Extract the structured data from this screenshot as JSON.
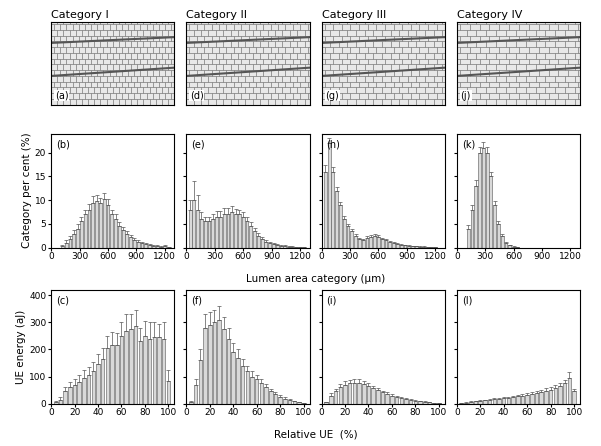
{
  "images": [
    {
      "title": "Category I",
      "label": "(a)"
    },
    {
      "title": "Category II",
      "label": "(d)"
    },
    {
      "title": "Category III",
      "label": "(g)"
    },
    {
      "title": "Category IV",
      "label": "(j)"
    }
  ],
  "chart_data": [
    {
      "type": "bar",
      "panel_label": "(b)",
      "xlabel": "Lumen area category (µm)",
      "ylabel": "Category per cent (%)",
      "x": [
        40,
        80,
        120,
        160,
        200,
        240,
        280,
        320,
        360,
        400,
        440,
        480,
        520,
        560,
        600,
        640,
        680,
        720,
        760,
        800,
        840,
        880,
        920,
        960,
        1000,
        1040,
        1080,
        1120,
        1160,
        1200,
        1240
      ],
      "values": [
        0,
        0,
        0.3,
        1,
        1.8,
        2.8,
        4,
        5.5,
        7,
        8,
        9.5,
        9.8,
        9.3,
        10.3,
        9,
        7,
        6,
        4.5,
        3.6,
        2.8,
        2.2,
        1.6,
        1.2,
        0.9,
        0.7,
        0.5,
        0.4,
        0.3,
        0.2,
        0.3,
        0.1
      ],
      "errors": [
        0,
        0,
        0.3,
        0.5,
        0.6,
        0.8,
        0.9,
        1,
        1,
        1.2,
        1.3,
        1.2,
        1.2,
        1.3,
        1.2,
        1,
        1,
        0.8,
        0.7,
        0.6,
        0.5,
        0.4,
        0.4,
        0.3,
        0.3,
        0.2,
        0.2,
        0.2,
        0.1,
        0.2,
        0.1
      ],
      "color": "#d9d9d9",
      "xlim": [
        0,
        1300
      ],
      "xticks": [
        0,
        300,
        600,
        900,
        1200
      ],
      "ylim": [
        0,
        24
      ],
      "yticks": [
        0,
        5,
        10,
        15,
        20
      ],
      "tick_labels": true
    },
    {
      "type": "bar",
      "panel_label": "(e)",
      "x": [
        40,
        80,
        120,
        160,
        200,
        240,
        280,
        320,
        360,
        400,
        440,
        480,
        520,
        560,
        600,
        640,
        680,
        720,
        760,
        800,
        840,
        880,
        920,
        960,
        1000,
        1040,
        1080,
        1120,
        1160,
        1200,
        1240
      ],
      "values": [
        8,
        10,
        8,
        6,
        5.5,
        5.5,
        6,
        6.5,
        6.5,
        7,
        7,
        7.5,
        7,
        7,
        6.5,
        5.5,
        4.5,
        3.5,
        2.5,
        1.8,
        1.2,
        0.9,
        0.7,
        0.5,
        0.4,
        0.3,
        0.2,
        0.2,
        0.1,
        0.1,
        0.1
      ],
      "errors": [
        2,
        4,
        3,
        1.5,
        1,
        1,
        1,
        1.2,
        1.2,
        1.3,
        1.3,
        1.2,
        1.2,
        1,
        1,
        1,
        0.8,
        0.7,
        0.6,
        0.5,
        0.4,
        0.3,
        0.3,
        0.2,
        0.2,
        0.2,
        0.1,
        0.1,
        0.1,
        0.1,
        0.1
      ],
      "color": "#d9d9d9",
      "xlim": [
        0,
        1300
      ],
      "xticks": [
        0,
        300,
        600,
        900,
        1200
      ],
      "ylim": [
        0,
        24
      ],
      "yticks": [
        0,
        5,
        10,
        15,
        20
      ],
      "tick_labels": "x"
    },
    {
      "type": "bar",
      "panel_label": "(h)",
      "x": [
        40,
        80,
        120,
        160,
        200,
        240,
        280,
        320,
        360,
        400,
        440,
        480,
        520,
        560,
        600,
        640,
        680,
        720,
        760,
        800,
        840,
        880,
        920,
        960,
        1000,
        1040,
        1080,
        1120,
        1160,
        1200,
        1240
      ],
      "values": [
        16,
        22,
        16,
        12,
        9,
        6,
        4.5,
        3.5,
        2.5,
        1.8,
        1.5,
        2,
        2.3,
        2.5,
        2.2,
        1.8,
        1.5,
        1.2,
        1,
        0.8,
        0.6,
        0.5,
        0.4,
        0.3,
        0.3,
        0.2,
        0.2,
        0.1,
        0.1,
        0.1,
        0
      ],
      "errors": [
        1.5,
        1.2,
        1,
        0.8,
        0.7,
        0.6,
        0.5,
        0.4,
        0.4,
        0.3,
        0.3,
        0.4,
        0.4,
        0.4,
        0.4,
        0.3,
        0.3,
        0.2,
        0.2,
        0.2,
        0.1,
        0.1,
        0.1,
        0.1,
        0.1,
        0.1,
        0.1,
        0.1,
        0.1,
        0.1,
        0
      ],
      "color": "#d9d9d9",
      "xlim": [
        0,
        1300
      ],
      "xticks": [
        0,
        300,
        600,
        900,
        1200
      ],
      "ylim": [
        0,
        24
      ],
      "yticks": [
        0,
        5,
        10,
        15,
        20
      ],
      "tick_labels": "x"
    },
    {
      "type": "bar",
      "panel_label": "(k)",
      "x": [
        40,
        80,
        120,
        160,
        200,
        240,
        280,
        320,
        360,
        400,
        440,
        480,
        520,
        560,
        600,
        640,
        680,
        720,
        760,
        800,
        840,
        880,
        920,
        960,
        1000,
        1040,
        1080,
        1120,
        1160,
        1200,
        1240
      ],
      "values": [
        0,
        0,
        4,
        8,
        13,
        20,
        21,
        20,
        15,
        9,
        5,
        2.5,
        1,
        0.5,
        0.2,
        0.1,
        0,
        0,
        0,
        0,
        0,
        0,
        0,
        0,
        0,
        0,
        0,
        0,
        0,
        0,
        0
      ],
      "errors": [
        0,
        0,
        0.8,
        1,
        1.2,
        1.3,
        1.2,
        1.2,
        1,
        0.8,
        0.6,
        0.4,
        0.2,
        0.1,
        0.1,
        0.1,
        0,
        0,
        0,
        0,
        0,
        0,
        0,
        0,
        0,
        0,
        0,
        0,
        0,
        0,
        0
      ],
      "color": "#d9d9d9",
      "xlim": [
        0,
        1300
      ],
      "xticks": [
        0,
        300,
        600,
        900,
        1200
      ],
      "ylim": [
        0,
        24
      ],
      "yticks": [
        0,
        5,
        10,
        15,
        20
      ],
      "tick_labels": "x"
    },
    {
      "type": "bar",
      "panel_label": "(c)",
      "xlabel": "Relative UE  (%)",
      "ylabel": "UE energy (aJ)",
      "x": [
        4,
        8,
        12,
        16,
        20,
        24,
        28,
        32,
        36,
        40,
        44,
        48,
        52,
        56,
        60,
        64,
        68,
        72,
        76,
        80,
        84,
        88,
        92,
        96,
        100
      ],
      "values": [
        5,
        15,
        45,
        60,
        70,
        80,
        95,
        105,
        120,
        145,
        165,
        205,
        215,
        215,
        250,
        270,
        275,
        285,
        230,
        250,
        240,
        245,
        245,
        240,
        85
      ],
      "errors": [
        3,
        8,
        15,
        20,
        20,
        25,
        30,
        30,
        35,
        40,
        40,
        45,
        50,
        45,
        50,
        60,
        55,
        60,
        50,
        55,
        60,
        55,
        50,
        60,
        40
      ],
      "color": "#d9d9d9",
      "xlim": [
        0,
        105
      ],
      "xticks": [
        0,
        20,
        40,
        60,
        80,
        100
      ],
      "ylim": [
        0,
        420
      ],
      "yticks": [
        0,
        100,
        200,
        300,
        400
      ],
      "tick_labels": true
    },
    {
      "type": "bar",
      "panel_label": "(f)",
      "x": [
        4,
        8,
        12,
        16,
        20,
        24,
        28,
        32,
        36,
        40,
        44,
        48,
        52,
        56,
        60,
        64,
        68,
        72,
        76,
        80,
        84,
        88,
        92,
        96,
        100
      ],
      "values": [
        5,
        70,
        160,
        280,
        290,
        300,
        310,
        275,
        240,
        190,
        170,
        140,
        120,
        100,
        90,
        75,
        60,
        45,
        35,
        25,
        18,
        12,
        8,
        5,
        3
      ],
      "errors": [
        3,
        20,
        40,
        50,
        50,
        45,
        50,
        45,
        40,
        35,
        30,
        25,
        20,
        20,
        15,
        15,
        12,
        10,
        8,
        6,
        5,
        4,
        3,
        2,
        1
      ],
      "color": "#d9d9d9",
      "xlim": [
        0,
        105
      ],
      "xticks": [
        0,
        20,
        40,
        60,
        80,
        100
      ],
      "ylim": [
        0,
        420
      ],
      "yticks": [
        0,
        100,
        200,
        300,
        400
      ],
      "tick_labels": "x"
    },
    {
      "type": "bar",
      "panel_label": "(i)",
      "x": [
        4,
        8,
        12,
        16,
        20,
        24,
        28,
        32,
        36,
        40,
        44,
        48,
        52,
        56,
        60,
        64,
        68,
        72,
        76,
        80,
        84,
        88,
        92,
        96,
        100
      ],
      "values": [
        5,
        30,
        45,
        60,
        70,
        75,
        78,
        78,
        72,
        65,
        58,
        50,
        42,
        36,
        30,
        25,
        20,
        17,
        14,
        11,
        8,
        6,
        5,
        3,
        2
      ],
      "errors": [
        2,
        8,
        10,
        12,
        12,
        12,
        12,
        12,
        10,
        10,
        8,
        8,
        6,
        6,
        5,
        5,
        4,
        3,
        3,
        2,
        2,
        2,
        1,
        1,
        1
      ],
      "color": "#d9d9d9",
      "xlim": [
        0,
        105
      ],
      "xticks": [
        0,
        20,
        40,
        60,
        80,
        100
      ],
      "ylim": [
        0,
        420
      ],
      "yticks": [
        0,
        100,
        200,
        300,
        400
      ],
      "tick_labels": "x"
    },
    {
      "type": "bar",
      "panel_label": "(l)",
      "x": [
        4,
        8,
        12,
        16,
        20,
        24,
        28,
        32,
        36,
        40,
        44,
        48,
        52,
        56,
        60,
        64,
        68,
        72,
        76,
        80,
        84,
        88,
        92,
        96,
        100
      ],
      "values": [
        2,
        4,
        6,
        8,
        10,
        12,
        14,
        16,
        18,
        20,
        22,
        25,
        28,
        30,
        33,
        36,
        40,
        44,
        48,
        52,
        58,
        65,
        75,
        95,
        45
      ],
      "errors": [
        1,
        1,
        2,
        2,
        2,
        3,
        3,
        3,
        4,
        4,
        4,
        5,
        5,
        5,
        6,
        6,
        7,
        8,
        8,
        9,
        10,
        12,
        14,
        20,
        10
      ],
      "color": "#d9d9d9",
      "xlim": [
        0,
        105
      ],
      "xticks": [
        0,
        20,
        40,
        60,
        80,
        100
      ],
      "ylim": [
        0,
        420
      ],
      "yticks": [
        0,
        100,
        200,
        300,
        400
      ],
      "tick_labels": "x"
    }
  ]
}
